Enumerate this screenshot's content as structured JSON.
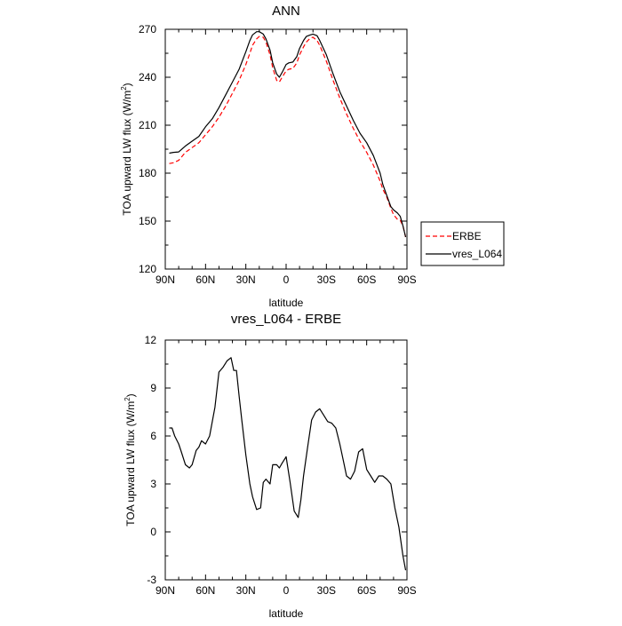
{
  "chart_data": [
    {
      "type": "line",
      "title": "ANN",
      "xlabel": "latitude",
      "ylabel": "TOA upward LW flux (W/m",
      "ylabel_sup": "2",
      "ylabel_close": ")",
      "xlim": [
        90,
        -90
      ],
      "ylim": [
        120,
        270
      ],
      "xticks": [
        90,
        60,
        30,
        0,
        -30,
        -60,
        -90
      ],
      "xtick_labels": [
        "90N",
        "60N",
        "30N",
        "0",
        "30S",
        "60S",
        "90S"
      ],
      "yticks": [
        120,
        150,
        180,
        210,
        240,
        270
      ],
      "ytick_labels": [
        "120",
        "150",
        "180",
        "210",
        "240",
        "270"
      ],
      "legend": {
        "placement": "right",
        "entries": [
          "ERBE",
          "vres_L064"
        ]
      },
      "x": [
        87,
        84,
        80,
        75,
        70,
        65,
        60,
        55,
        50,
        45,
        40,
        35,
        30,
        27,
        25,
        22,
        20,
        17,
        15,
        12,
        10,
        7,
        5,
        3,
        0,
        -2,
        -5,
        -8,
        -10,
        -13,
        -15,
        -18,
        -20,
        -23,
        -25,
        -30,
        -35,
        -40,
        -45,
        -50,
        -55,
        -60,
        -65,
        -70,
        -72,
        -75,
        -78,
        -80,
        -83,
        -85,
        -87,
        -89
      ],
      "series": [
        {
          "name": "ERBE",
          "color": "#ff0000",
          "dash": "dashed",
          "values": [
            186,
            186.5,
            188,
            193,
            196,
            199,
            204,
            209,
            215,
            222,
            230,
            238,
            248,
            255,
            260,
            264,
            265.5,
            265,
            262,
            254,
            246,
            238,
            237,
            240,
            244,
            245,
            245.5,
            249,
            254,
            259,
            262,
            264.5,
            265,
            263,
            260,
            250,
            238,
            227,
            217,
            208,
            200,
            193,
            185,
            175,
            170,
            165,
            158,
            154,
            151,
            150.5,
            147,
            140
          ]
        },
        {
          "name": "vres_L064",
          "color": "#000000",
          "dash": "solid",
          "values": [
            192.5,
            193,
            193.3,
            197,
            200,
            203,
            209,
            214,
            221,
            229,
            237,
            245,
            256,
            263,
            266.5,
            268.5,
            268.5,
            267,
            264,
            257,
            249,
            242,
            240,
            243,
            248,
            249,
            249.5,
            253,
            258,
            263,
            265.5,
            266.5,
            267,
            266,
            263,
            254,
            242,
            231,
            222,
            213,
            205,
            199,
            191,
            180,
            173,
            166,
            159,
            157,
            155,
            153,
            147,
            140
          ]
        }
      ]
    },
    {
      "type": "line",
      "title": "vres_L064 - ERBE",
      "xlabel": "latitude",
      "ylabel": "TOA upward LW flux (W/m",
      "ylabel_sup": "2",
      "ylabel_close": ")",
      "xlim": [
        90,
        -90
      ],
      "ylim": [
        -3,
        12
      ],
      "xticks": [
        90,
        60,
        30,
        0,
        -30,
        -60,
        -90
      ],
      "xtick_labels": [
        "90N",
        "60N",
        "30N",
        "0",
        "30S",
        "60S",
        "90S"
      ],
      "yticks": [
        -3,
        0,
        3,
        6,
        9,
        12
      ],
      "ytick_labels": [
        "-3",
        "0",
        "3",
        "6",
        "9",
        "12"
      ],
      "x": [
        87,
        85,
        83,
        80,
        78,
        75,
        72,
        70,
        67,
        65,
        63,
        60,
        57,
        53,
        50,
        47,
        44,
        41,
        39,
        37,
        35,
        33,
        30,
        27,
        25,
        22,
        19,
        17,
        15,
        12,
        10,
        7,
        5,
        3,
        0,
        -3,
        -6,
        -9,
        -11,
        -13,
        -16,
        -19,
        -22,
        -25,
        -28,
        -31,
        -34,
        -37,
        -40,
        -43,
        -45,
        -48,
        -51,
        -54,
        -57,
        -60,
        -63,
        -66,
        -69,
        -72,
        -75,
        -78,
        -81,
        -84,
        -87,
        -89
      ],
      "series": [
        {
          "name": "vres_L064 - ERBE",
          "color": "#000000",
          "dash": "solid",
          "values": [
            6.5,
            6.5,
            6.0,
            5.5,
            5.0,
            4.2,
            4.0,
            4.2,
            5.1,
            5.3,
            5.7,
            5.5,
            6.0,
            7.8,
            10.0,
            10.3,
            10.7,
            10.9,
            10.1,
            10.1,
            8.5,
            7.0,
            4.8,
            3.0,
            2.2,
            1.4,
            1.5,
            3.1,
            3.3,
            3.0,
            4.2,
            4.2,
            4.0,
            4.3,
            4.7,
            3.1,
            1.3,
            0.9,
            2.0,
            3.5,
            5.3,
            7.0,
            7.5,
            7.7,
            7.3,
            6.9,
            6.8,
            6.5,
            5.5,
            4.3,
            3.5,
            3.3,
            3.8,
            5.0,
            5.2,
            3.9,
            3.5,
            3.1,
            3.5,
            3.5,
            3.3,
            3.0,
            1.5,
            0.3,
            -1.5,
            -2.4
          ]
        }
      ]
    }
  ]
}
